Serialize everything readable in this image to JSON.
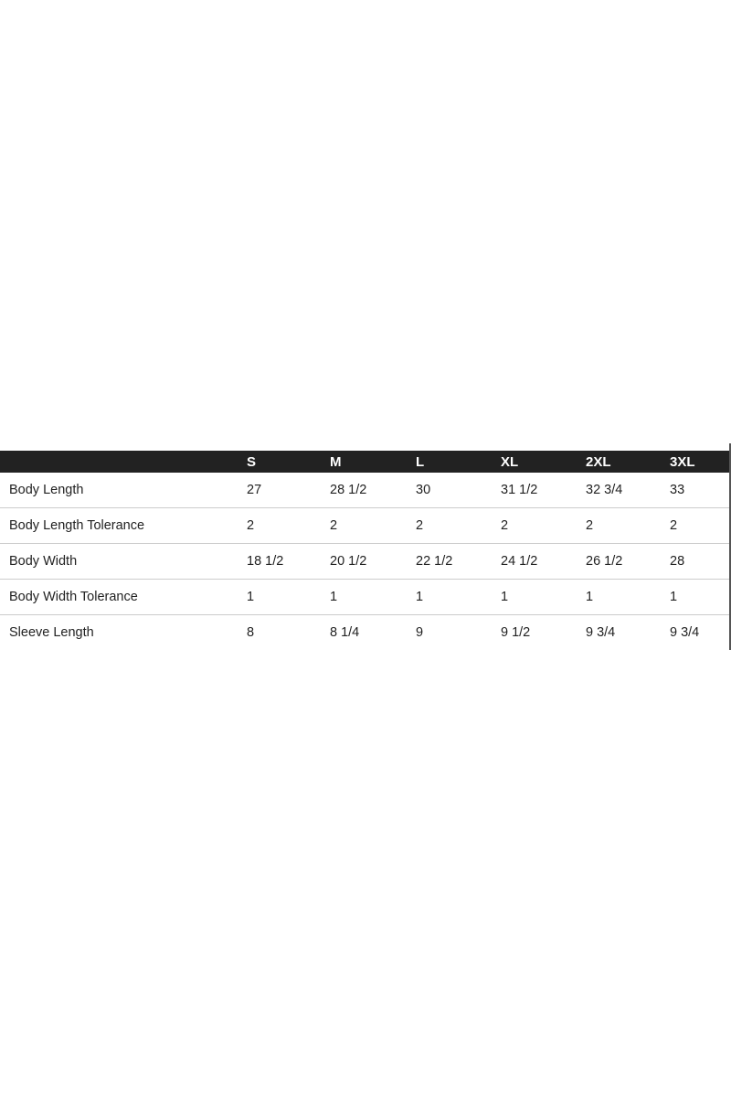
{
  "table": {
    "headers": [
      "",
      "S",
      "M",
      "L",
      "XL",
      "2XL",
      "3XL"
    ],
    "rows": [
      [
        "Body Length",
        "27",
        "28 1/2",
        "30",
        "31 1/2",
        "32 3/4",
        "33"
      ],
      [
        "Body Length Tolerance",
        "2",
        "2",
        "2",
        "2",
        "2",
        "2"
      ],
      [
        "Body Width",
        "18 1/2",
        "20 1/2",
        "22 1/2",
        "24 1/2",
        "26 1/2",
        "28"
      ],
      [
        "Body Width Tolerance",
        "1",
        "1",
        "1",
        "1",
        "1",
        "1"
      ],
      [
        "Sleeve Length",
        "8",
        "8 1/4",
        "9",
        "9 1/2",
        "9 3/4",
        "9 3/4"
      ]
    ],
    "header_bg": "#222222"
  }
}
